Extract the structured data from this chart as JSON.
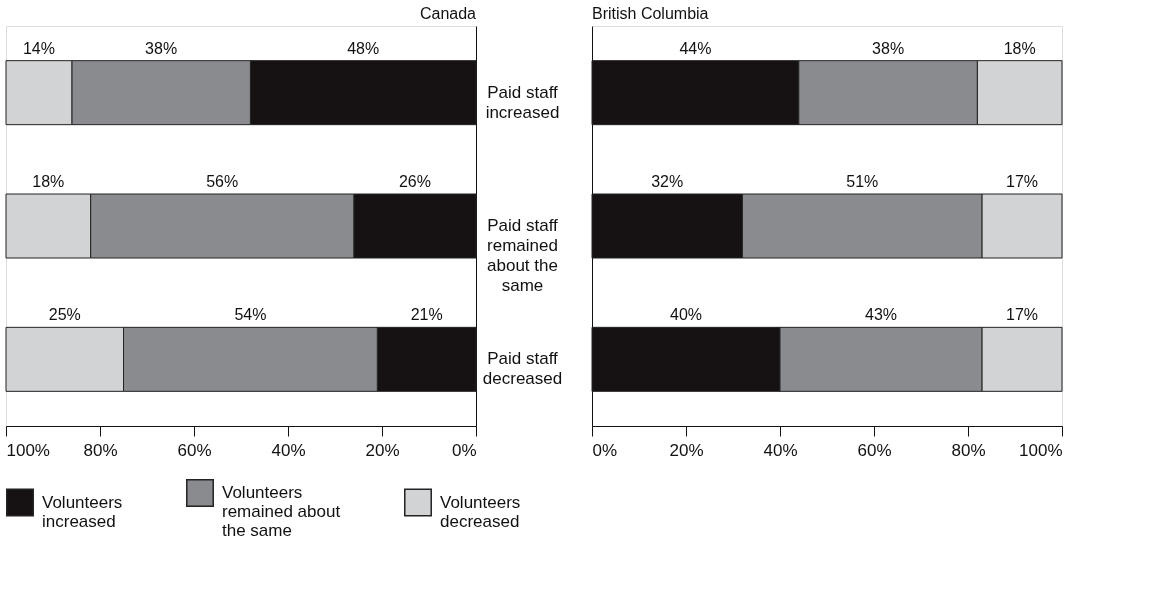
{
  "chart_data": [
    {
      "type": "bar",
      "title": "Canada",
      "orientation": "horizontal",
      "stacked": true,
      "categories": [
        "Paid staff increased",
        "Paid staff remained about the same",
        "Paid staff decreased"
      ],
      "series": [
        {
          "name": "Volunteers increased",
          "color": "#161214",
          "values": [
            48,
            26,
            21
          ],
          "value_labels": [
            "48%",
            "26%",
            "21%"
          ]
        },
        {
          "name": "Volunteers remained about the same",
          "color": "#8a8b8e",
          "values": [
            38,
            56,
            54
          ],
          "value_labels": [
            "38%",
            "56%",
            "54%"
          ]
        },
        {
          "name": "Volunteers decreased",
          "color": "#d2d3d5",
          "values": [
            14,
            18,
            25
          ],
          "value_labels": [
            "14%",
            "18%",
            "25%"
          ]
        }
      ],
      "xlim": [
        100,
        0
      ],
      "xticks": [
        {
          "value": 100,
          "label": "100%"
        },
        {
          "value": 80,
          "label": "80%"
        },
        {
          "value": 60,
          "label": "60%"
        },
        {
          "value": 40,
          "label": "40%"
        },
        {
          "value": 20,
          "label": "20%"
        },
        {
          "value": 0,
          "label": "0%"
        }
      ],
      "tick_labels": "x",
      "grid": false,
      "legend": "bottom"
    },
    {
      "type": "bar",
      "title": "British Columbia",
      "orientation": "horizontal",
      "stacked": true,
      "categories": [
        "Paid staff increased",
        "Paid staff remained about the same",
        "Paid staff decreased"
      ],
      "series": [
        {
          "name": "Volunteers increased",
          "color": "#161214",
          "values": [
            44,
            32,
            40
          ],
          "value_labels": [
            "44%",
            "32%",
            "40%"
          ]
        },
        {
          "name": "Volunteers remained about the same",
          "color": "#8a8b8e",
          "values": [
            38,
            51,
            43
          ],
          "value_labels": [
            "38%",
            "51%",
            "43%"
          ]
        },
        {
          "name": "Volunteers decreased",
          "color": "#d2d3d5",
          "values": [
            18,
            17,
            17
          ],
          "value_labels": [
            "18%",
            "17%",
            "17%"
          ]
        }
      ],
      "xlim": [
        0,
        100
      ],
      "xticks": [
        {
          "value": 0,
          "label": "0%"
        },
        {
          "value": 20,
          "label": "20%"
        },
        {
          "value": 40,
          "label": "40%"
        },
        {
          "value": 60,
          "label": "60%"
        },
        {
          "value": 80,
          "label": "80%"
        },
        {
          "value": 100,
          "label": "100%"
        }
      ],
      "grid": false,
      "legend": "bottom"
    }
  ]
}
